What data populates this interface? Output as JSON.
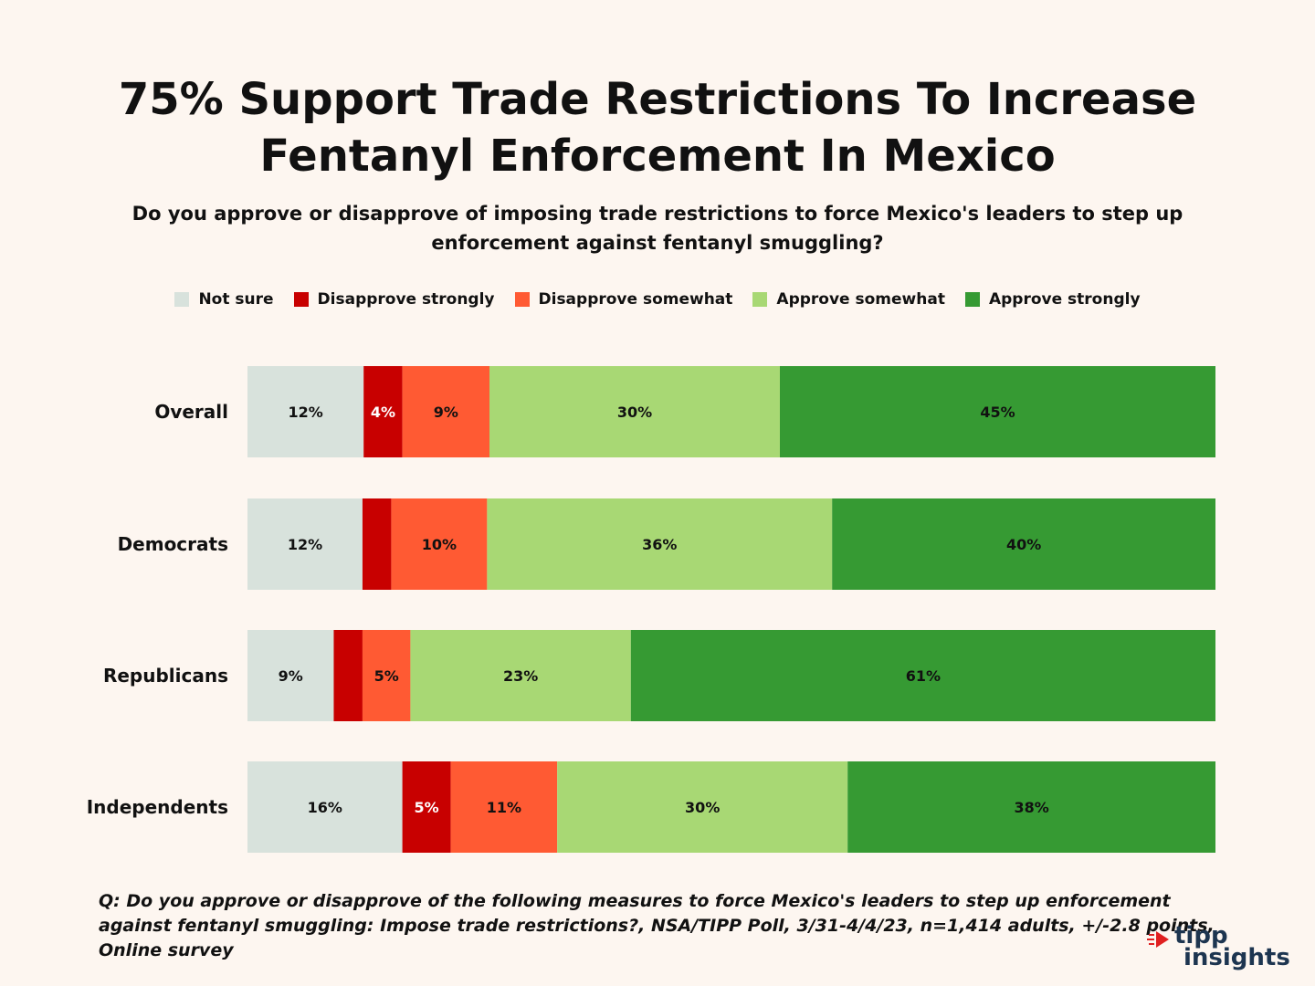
{
  "title_line1": "75% Support Trade Restrictions To Increase",
  "title_line2": "Fentanyl Enforcement In Mexico",
  "subtitle": "Do you approve or disapprove of imposing trade restrictions to force Mexico's leaders to step up enforcement against fentanyl smuggling?",
  "footnote": "Q: Do you approve or disapprove of the following measures to force Mexico's leaders to step up enforcement against fentanyl smuggling: Impose trade restrictions?, NSA/TIPP Poll, 3/31-4/4/23, n=1,414 adults, +/-2.8 points, Online survey",
  "logo": {
    "line1": "tipp",
    "line2": "insights"
  },
  "colors": {
    "background": "#fdf6f0",
    "not_sure": "#d8e2dc",
    "disapprove_strongly": "#c80000",
    "disapprove_somewhat": "#ff5a33",
    "approve_somewhat": "#a8d874",
    "approve_strongly": "#369a33",
    "logo_red": "#e02020",
    "logo_navy": "#1d3550"
  },
  "chart_data": {
    "type": "bar",
    "orientation": "horizontal",
    "stacked": true,
    "xlim": [
      0,
      100
    ],
    "legend_position": "top",
    "categories": [
      "Overall",
      "Democrats",
      "Republicans",
      "Independents"
    ],
    "series": [
      {
        "name": "Not sure",
        "color": "#d8e2dc",
        "values": [
          12,
          12,
          9,
          16
        ],
        "labels": [
          "12%",
          "12%",
          "9%",
          "16%"
        ]
      },
      {
        "name": "Disapprove strongly",
        "color": "#c80000",
        "values": [
          4,
          3,
          3,
          5
        ],
        "labels": [
          "4%",
          "",
          "",
          "5%"
        ]
      },
      {
        "name": "Disapprove somewhat",
        "color": "#ff5a33",
        "values": [
          9,
          10,
          5,
          11
        ],
        "labels": [
          "9%",
          "10%",
          "5%",
          "11%"
        ]
      },
      {
        "name": "Approve somewhat",
        "color": "#a8d874",
        "values": [
          30,
          36,
          23,
          30
        ],
        "labels": [
          "30%",
          "36%",
          "23%",
          "30%"
        ]
      },
      {
        "name": "Approve strongly",
        "color": "#369a33",
        "values": [
          45,
          40,
          61,
          38
        ],
        "labels": [
          "45%",
          "40%",
          "61%",
          "38%"
        ]
      }
    ]
  }
}
